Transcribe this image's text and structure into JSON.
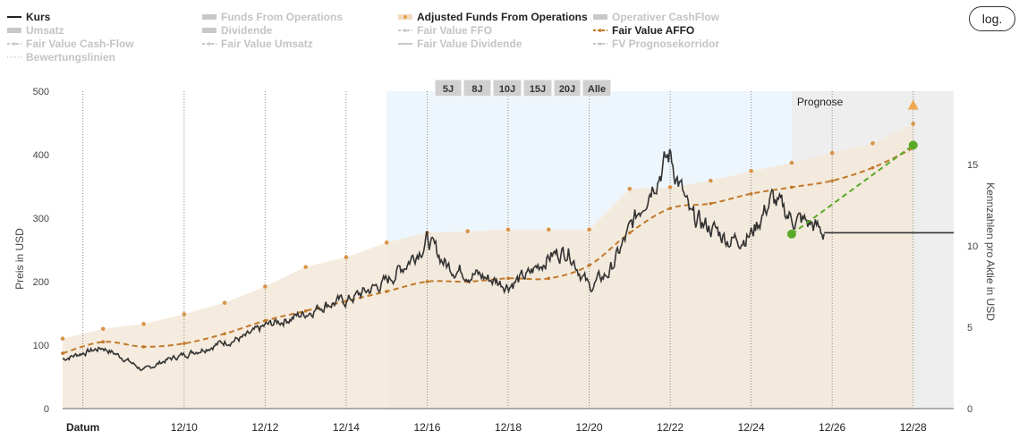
{
  "log_button": "log.",
  "legend": [
    {
      "label": "Kurs",
      "active": true,
      "symbol": "line",
      "color": "#222222"
    },
    {
      "label": "Funds From Operations",
      "active": false,
      "symbol": "bar",
      "color": "#c8c8c8"
    },
    {
      "label": "Adjusted Funds From Operations",
      "active": true,
      "symbol": "dot",
      "color": "#e8a050"
    },
    {
      "label": "Operativer CashFlow",
      "active": false,
      "symbol": "bar",
      "color": "#c8c8c8"
    },
    {
      "label": "Umsatz",
      "active": false,
      "symbol": "bar",
      "color": "#c8c8c8"
    },
    {
      "label": "Dividende",
      "active": false,
      "symbol": "bar",
      "color": "#c8c8c8"
    },
    {
      "label": "Fair Value FFO",
      "active": false,
      "symbol": "dashline",
      "color": "#c8c8c8"
    },
    {
      "label": "Fair Value AFFO",
      "active": true,
      "symbol": "dashline",
      "color": "#c07a2a"
    },
    {
      "label": "Fair Value Cash-Flow",
      "active": false,
      "symbol": "dashline",
      "color": "#c8c8c8"
    },
    {
      "label": "Fair Value Umsatz",
      "active": false,
      "symbol": "dashline",
      "color": "#c8c8c8"
    },
    {
      "label": "Fair Value Dividende",
      "active": false,
      "symbol": "line",
      "color": "#c8c8c8"
    },
    {
      "label": "FV Prognosekorridor",
      "active": false,
      "symbol": "dashline",
      "color": "#c8c8c8"
    },
    {
      "label": "Bewertungslinien",
      "active": false,
      "symbol": "dotline",
      "color": "#c8c8c8"
    }
  ],
  "range_buttons": [
    "5J",
    "8J",
    "10J",
    "15J",
    "20J",
    "Alle"
  ],
  "prognose_label": "Prognose",
  "colors": {
    "price": "#333333",
    "affo_dot": "#d9944a",
    "fair_value": "#c07a2a",
    "area_fill": "#f3e7d8",
    "forecast_bg": "#eeeeee",
    "highlight_bg": "#eef6fd",
    "green": "#5aaa2a",
    "triangle": "#f0a850"
  },
  "chart_data": {
    "type": "line",
    "x_ticks": [
      "Datum",
      "12/10",
      "12/12",
      "12/14",
      "12/16",
      "12/18",
      "12/20",
      "12/22",
      "12/24",
      "12/26",
      "12/28"
    ],
    "x_domain": [
      2007.0,
      2029.0
    ],
    "y_left": {
      "label": "Preis in USD",
      "ticks": [
        0,
        100,
        200,
        300,
        400,
        500
      ],
      "range": [
        0,
        500
      ]
    },
    "y_right": {
      "label": "Kennzahlen pro Aktie in USD",
      "ticks": [
        0,
        5,
        10,
        15
      ],
      "range": [
        0,
        19.5
      ]
    },
    "highlight_range": [
      2015.0,
      2025.0
    ],
    "forecast_start": 2025.0,
    "price_anchors": [
      [
        2007.0,
        78
      ],
      [
        2007.5,
        88
      ],
      [
        2008.0,
        96
      ],
      [
        2008.5,
        80
      ],
      [
        2009.0,
        60
      ],
      [
        2009.5,
        75
      ],
      [
        2010.0,
        85
      ],
      [
        2010.5,
        95
      ],
      [
        2011.0,
        105
      ],
      [
        2011.5,
        112
      ],
      [
        2012.0,
        130
      ],
      [
        2012.5,
        140
      ],
      [
        2013.0,
        150
      ],
      [
        2013.5,
        165
      ],
      [
        2014.0,
        170
      ],
      [
        2014.5,
        185
      ],
      [
        2015.0,
        200
      ],
      [
        2015.5,
        230
      ],
      [
        2016.0,
        265
      ],
      [
        2016.5,
        225
      ],
      [
        2017.0,
        215
      ],
      [
        2017.5,
        205
      ],
      [
        2018.0,
        195
      ],
      [
        2018.5,
        210
      ],
      [
        2019.0,
        240
      ],
      [
        2019.5,
        250
      ],
      [
        2020.0,
        190
      ],
      [
        2020.5,
        215
      ],
      [
        2021.0,
        280
      ],
      [
        2021.5,
        350
      ],
      [
        2022.0,
        400
      ],
      [
        2022.5,
        300
      ],
      [
        2023.0,
        285
      ],
      [
        2023.5,
        265
      ],
      [
        2024.0,
        275
      ],
      [
        2024.5,
        330
      ],
      [
        2025.0,
        300
      ],
      [
        2025.5,
        290
      ],
      [
        2025.8,
        275
      ]
    ],
    "price_flat": {
      "from": 2025.8,
      "to": 2029.0,
      "value": 277
    },
    "affo_values": [
      [
        2007.0,
        4.3
      ],
      [
        2008.0,
        4.9
      ],
      [
        2009.0,
        5.2
      ],
      [
        2010.0,
        5.8
      ],
      [
        2011.0,
        6.5
      ],
      [
        2012.0,
        7.5
      ],
      [
        2013.0,
        8.7
      ],
      [
        2014.0,
        9.3
      ],
      [
        2015.0,
        10.2
      ],
      [
        2016.0,
        10.8
      ],
      [
        2017.0,
        10.9
      ],
      [
        2018.0,
        11.0
      ],
      [
        2019.0,
        11.0
      ],
      [
        2020.0,
        11.0
      ],
      [
        2021.0,
        13.5
      ],
      [
        2022.0,
        13.6
      ],
      [
        2023.0,
        14.0
      ],
      [
        2024.0,
        14.6
      ],
      [
        2025.0,
        15.1
      ],
      [
        2026.0,
        15.7
      ],
      [
        2027.0,
        16.3
      ],
      [
        2028.0,
        17.5
      ]
    ],
    "fair_value_affo": [
      [
        2007.0,
        3.4
      ],
      [
        2008.0,
        4.1
      ],
      [
        2009.0,
        3.8
      ],
      [
        2010.0,
        4.0
      ],
      [
        2011.0,
        4.6
      ],
      [
        2012.0,
        5.4
      ],
      [
        2013.0,
        6.0
      ],
      [
        2014.0,
        6.6
      ],
      [
        2015.0,
        7.2
      ],
      [
        2016.0,
        7.8
      ],
      [
        2017.0,
        7.8
      ],
      [
        2018.0,
        8.0
      ],
      [
        2019.0,
        8.0
      ],
      [
        2020.0,
        8.8
      ],
      [
        2021.0,
        10.8
      ],
      [
        2022.0,
        12.3
      ],
      [
        2023.0,
        12.6
      ],
      [
        2024.0,
        13.2
      ],
      [
        2025.0,
        13.6
      ],
      [
        2026.0,
        14.0
      ],
      [
        2027.0,
        14.8
      ],
      [
        2028.0,
        16.0
      ]
    ],
    "forecast_line": {
      "from": [
        2025.0,
        275
      ],
      "to": [
        2028.0,
        415
      ]
    },
    "forecast_triangle": [
      2028.0,
      478
    ]
  }
}
